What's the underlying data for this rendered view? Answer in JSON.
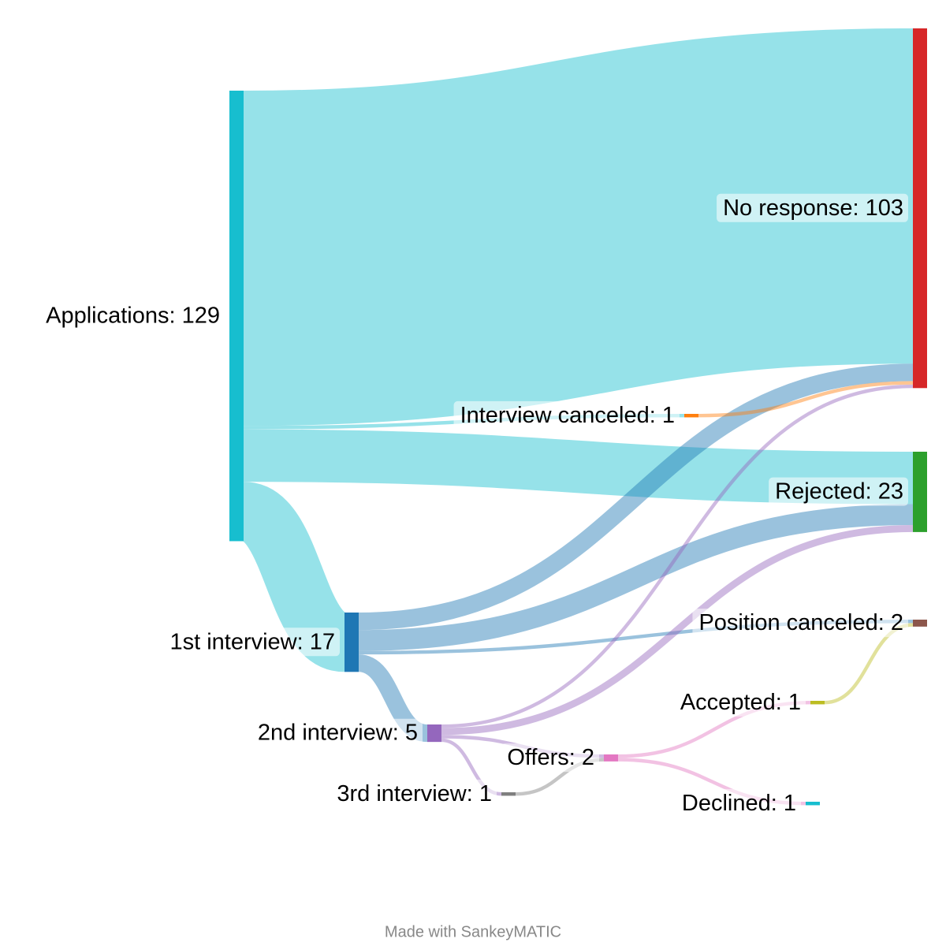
{
  "chart_data": {
    "type": "sankey",
    "nodes": [
      {
        "label": "Applications: 129",
        "value": 129,
        "color": "#17becf"
      },
      {
        "label": "No response: 103",
        "value": 103,
        "color": "#d62728"
      },
      {
        "label": "Interview canceled: 1",
        "value": 1,
        "color": "#ff7f0e"
      },
      {
        "label": "Rejected: 23",
        "value": 23,
        "color": "#2ca02c"
      },
      {
        "label": "1st interview: 17",
        "value": 17,
        "color": "#1f77b4"
      },
      {
        "label": "Position canceled: 2",
        "value": 2,
        "color": "#8c564b"
      },
      {
        "label": "2nd interview: 5",
        "value": 5,
        "color": "#9467bd"
      },
      {
        "label": "3rd interview: 1",
        "value": 1,
        "color": "#7f7f7f"
      },
      {
        "label": "Offers: 2",
        "value": 2,
        "color": "#e377c2"
      },
      {
        "label": "Accepted: 1",
        "value": 1,
        "color": "#bcbd22"
      },
      {
        "label": "Declined: 1",
        "value": 1,
        "color": "#17becf"
      }
    ],
    "flows": [
      {
        "source": 0,
        "target": 1,
        "value": 96
      },
      {
        "source": 0,
        "target": 2,
        "value": 1
      },
      {
        "source": 0,
        "target": 3,
        "value": 15
      },
      {
        "source": 0,
        "target": 4,
        "value": 17
      },
      {
        "source": 4,
        "target": 1,
        "value": 5
      },
      {
        "source": 4,
        "target": 3,
        "value": 6
      },
      {
        "source": 4,
        "target": 5,
        "value": 1
      },
      {
        "source": 4,
        "target": 6,
        "value": 5
      },
      {
        "source": 2,
        "target": 1,
        "value": 1
      },
      {
        "source": 6,
        "target": 1,
        "value": 1
      },
      {
        "source": 6,
        "target": 3,
        "value": 2
      },
      {
        "source": 6,
        "target": 8,
        "value": 1
      },
      {
        "source": 6,
        "target": 7,
        "value": 1
      },
      {
        "source": 7,
        "target": 8,
        "value": 1
      },
      {
        "source": 8,
        "target": 9,
        "value": 1
      },
      {
        "source": 8,
        "target": 10,
        "value": 1
      },
      {
        "source": 9,
        "target": 5,
        "value": 1
      }
    ],
    "credit": "Made with SankeyMATIC"
  }
}
